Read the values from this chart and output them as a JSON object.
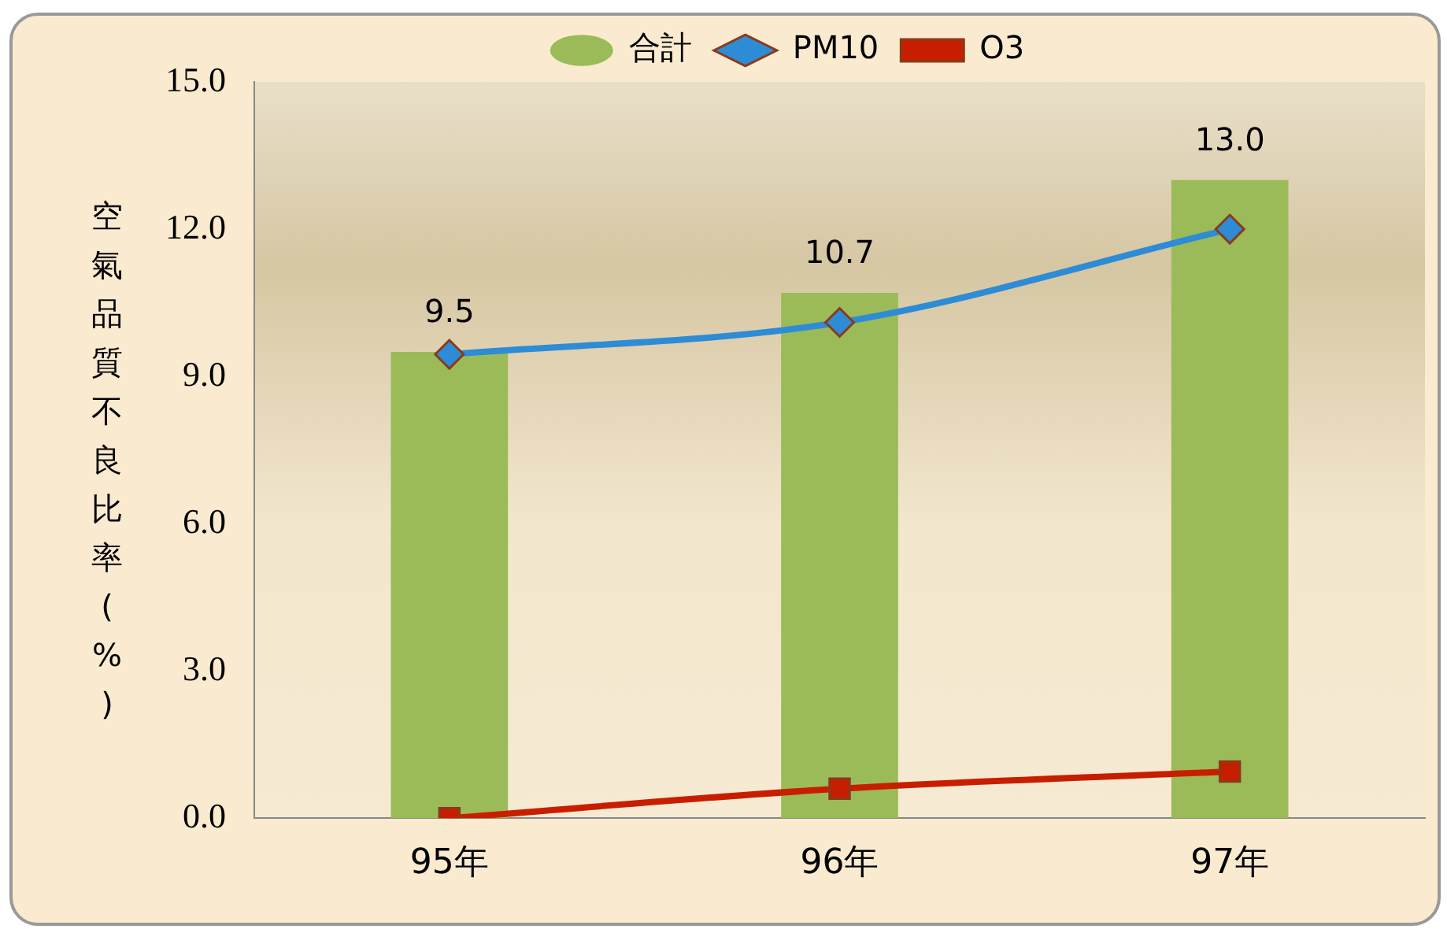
{
  "chart_data": {
    "type": "bar",
    "ylabel": "空氣品質不良比率(%)",
    "categories": [
      "95年",
      "96年",
      "97年"
    ],
    "series": [
      {
        "name": "合計",
        "color": "#9bbb59",
        "values": [
          9.5,
          10.7,
          13.0
        ],
        "value_labels": [
          "9.5",
          "10.7",
          "13.0"
        ]
      },
      {
        "name": "PM10",
        "type": "line",
        "color": "#2e8bd6",
        "marker": "diamond",
        "values": [
          9.45,
          10.1,
          12.0
        ]
      },
      {
        "name": "O3",
        "type": "line",
        "color": "#c81e00",
        "marker": "square",
        "values": [
          0.0,
          0.6,
          0.95
        ]
      }
    ],
    "ylim": [
      0,
      15
    ],
    "yticks": [
      {
        "value": 0,
        "label": "0.0"
      },
      {
        "value": 3,
        "label": "3.0"
      },
      {
        "value": 6,
        "label": "6.0"
      },
      {
        "value": 9,
        "label": "9.0"
      },
      {
        "value": 12,
        "label": "12.0"
      },
      {
        "value": 15,
        "label": "15.0"
      }
    ],
    "grid": false,
    "legend": "top"
  }
}
